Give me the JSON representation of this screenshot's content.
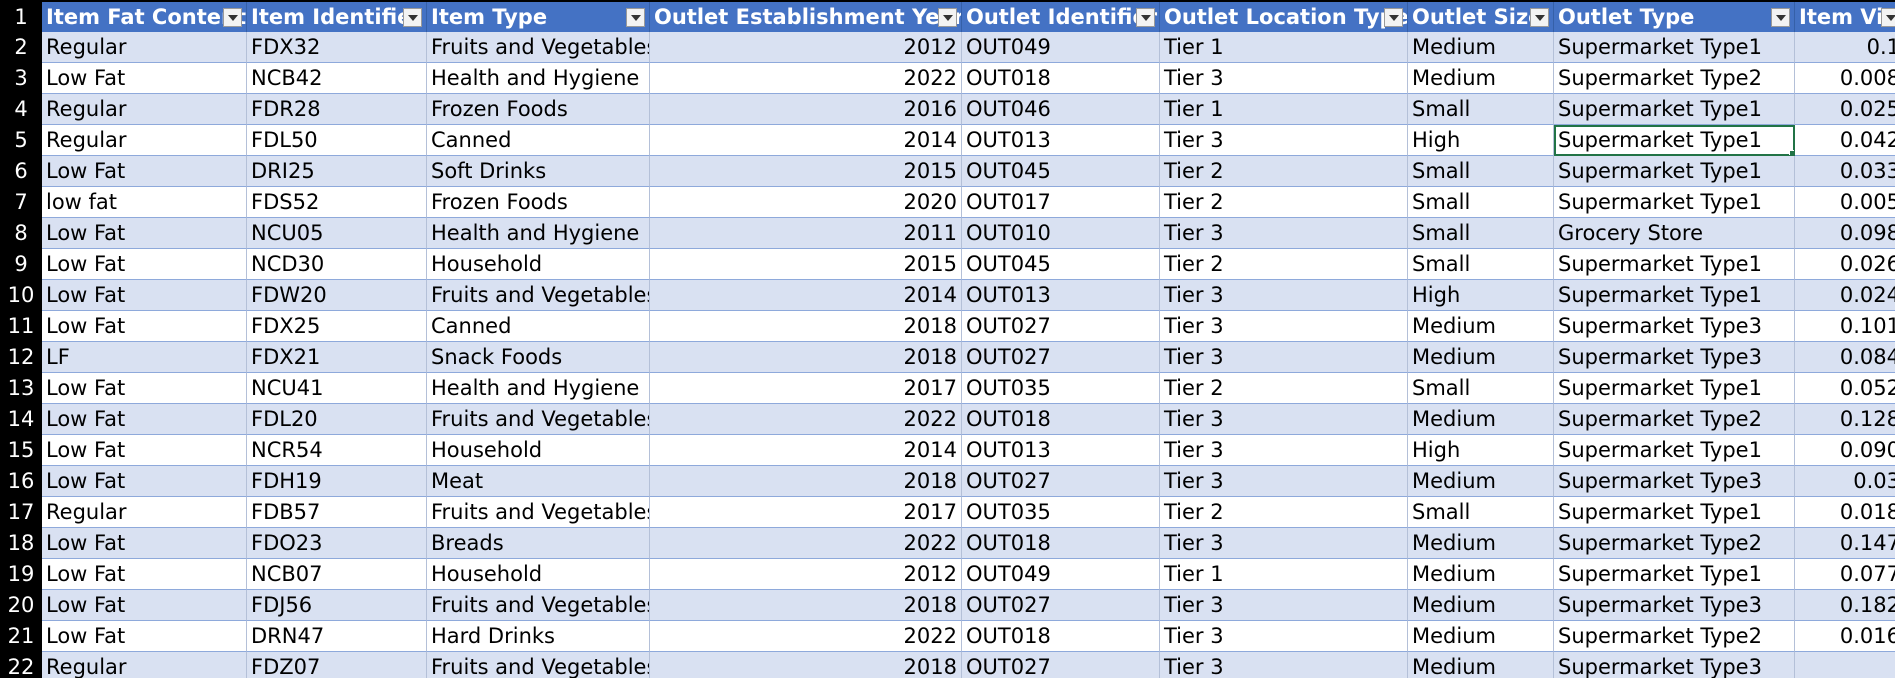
{
  "headers": [
    "Item Fat Content",
    "Item Identifier",
    "Item Type",
    "Outlet Establishment Year",
    "Outlet Identifier",
    "Outlet Location Type",
    "Outlet Size",
    "Outlet Type",
    "Item Visi"
  ],
  "rows": [
    {
      "n": "2",
      "c": [
        "Regular",
        "FDX32",
        "Fruits and Vegetables",
        "2012",
        "OUT049",
        "Tier 1",
        "Medium",
        "Supermarket Type1",
        "0.1"
      ]
    },
    {
      "n": "3",
      "c": [
        "Low Fat",
        "NCB42",
        "Health and Hygiene",
        "2022",
        "OUT018",
        "Tier 3",
        "Medium",
        "Supermarket Type2",
        "0.008"
      ]
    },
    {
      "n": "4",
      "c": [
        "Regular",
        "FDR28",
        "Frozen Foods",
        "2016",
        "OUT046",
        "Tier 1",
        "Small",
        "Supermarket Type1",
        "0.025"
      ]
    },
    {
      "n": "5",
      "c": [
        "Regular",
        "FDL50",
        "Canned",
        "2014",
        "OUT013",
        "Tier 3",
        "High",
        "Supermarket Type1",
        "0.042"
      ]
    },
    {
      "n": "6",
      "c": [
        "Low Fat",
        "DRI25",
        "Soft Drinks",
        "2015",
        "OUT045",
        "Tier 2",
        "Small",
        "Supermarket Type1",
        "0.033"
      ]
    },
    {
      "n": "7",
      "c": [
        "low fat",
        "FDS52",
        "Frozen Foods",
        "2020",
        "OUT017",
        "Tier 2",
        "Small",
        "Supermarket Type1",
        "0.005"
      ]
    },
    {
      "n": "8",
      "c": [
        "Low Fat",
        "NCU05",
        "Health and Hygiene",
        "2011",
        "OUT010",
        "Tier 3",
        "Small",
        "Grocery Store",
        "0.098"
      ]
    },
    {
      "n": "9",
      "c": [
        "Low Fat",
        "NCD30",
        "Household",
        "2015",
        "OUT045",
        "Tier 2",
        "Small",
        "Supermarket Type1",
        "0.026"
      ]
    },
    {
      "n": "10",
      "c": [
        "Low Fat",
        "FDW20",
        "Fruits and Vegetables",
        "2014",
        "OUT013",
        "Tier 3",
        "High",
        "Supermarket Type1",
        "0.024"
      ]
    },
    {
      "n": "11",
      "c": [
        "Low Fat",
        "FDX25",
        "Canned",
        "2018",
        "OUT027",
        "Tier 3",
        "Medium",
        "Supermarket Type3",
        "0.101"
      ]
    },
    {
      "n": "12",
      "c": [
        "LF",
        "FDX21",
        "Snack Foods",
        "2018",
        "OUT027",
        "Tier 3",
        "Medium",
        "Supermarket Type3",
        "0.084"
      ]
    },
    {
      "n": "13",
      "c": [
        "Low Fat",
        "NCU41",
        "Health and Hygiene",
        "2017",
        "OUT035",
        "Tier 2",
        "Small",
        "Supermarket Type1",
        "0.052"
      ]
    },
    {
      "n": "14",
      "c": [
        "Low Fat",
        "FDL20",
        "Fruits and Vegetables",
        "2022",
        "OUT018",
        "Tier 3",
        "Medium",
        "Supermarket Type2",
        "0.128"
      ]
    },
    {
      "n": "15",
      "c": [
        "Low Fat",
        "NCR54",
        "Household",
        "2014",
        "OUT013",
        "Tier 3",
        "High",
        "Supermarket Type1",
        "0.090"
      ]
    },
    {
      "n": "16",
      "c": [
        "Low Fat",
        "FDH19",
        "Meat",
        "2018",
        "OUT027",
        "Tier 3",
        "Medium",
        "Supermarket Type3",
        "0.03"
      ]
    },
    {
      "n": "17",
      "c": [
        "Regular",
        "FDB57",
        "Fruits and Vegetables",
        "2017",
        "OUT035",
        "Tier 2",
        "Small",
        "Supermarket Type1",
        "0.018"
      ]
    },
    {
      "n": "18",
      "c": [
        "Low Fat",
        "FDO23",
        "Breads",
        "2022",
        "OUT018",
        "Tier 3",
        "Medium",
        "Supermarket Type2",
        "0.147"
      ]
    },
    {
      "n": "19",
      "c": [
        "Low Fat",
        "NCB07",
        "Household",
        "2012",
        "OUT049",
        "Tier 1",
        "Medium",
        "Supermarket Type1",
        "0.077"
      ]
    },
    {
      "n": "20",
      "c": [
        "Low Fat",
        "FDJ56",
        "Fruits and Vegetables",
        "2018",
        "OUT027",
        "Tier 3",
        "Medium",
        "Supermarket Type3",
        "0.182"
      ]
    },
    {
      "n": "21",
      "c": [
        "Low Fat",
        "DRN47",
        "Hard Drinks",
        "2022",
        "OUT018",
        "Tier 3",
        "Medium",
        "Supermarket Type2",
        "0.016"
      ]
    },
    {
      "n": "22",
      "c": [
        "Regular",
        "FDZ07",
        "Fruits and Vegetables",
        "2018",
        "OUT027",
        "Tier 3",
        "Medium",
        "Supermarket Type3",
        ""
      ]
    }
  ],
  "header_row_number": "1",
  "selected_cell": {
    "row": 3,
    "col": 7
  },
  "colors": {
    "header": "#4472c4",
    "band": "#d9e1f2",
    "selection": "#217346"
  }
}
